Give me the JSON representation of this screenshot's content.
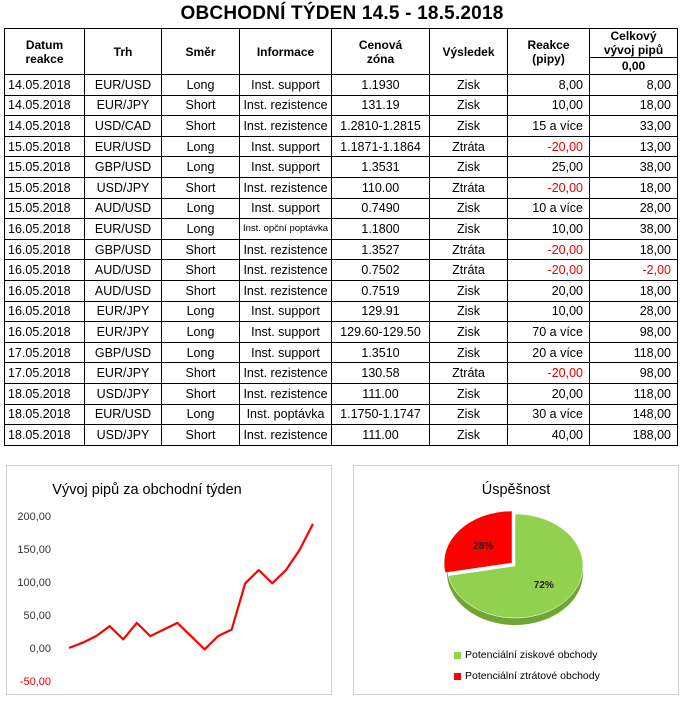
{
  "title": "OBCHODNÍ TÝDEN 14.5 - 18.5.2018",
  "table": {
    "headers": {
      "date": [
        "Datum",
        "reakce"
      ],
      "market": "Trh",
      "direction": "Směr",
      "info": "Informace",
      "zone": [
        "Cenová",
        "zóna"
      ],
      "result": "Výsledek",
      "reaction": [
        "Reakce",
        "(pipy)"
      ],
      "total": [
        "Celkový",
        "vývoj pipů"
      ],
      "start_total": "0,00"
    },
    "rows": [
      {
        "date": "14.05.2018",
        "market": "EUR/USD",
        "direction": "Long",
        "info": "Inst. support",
        "zone": "1.1930",
        "result": "Zisk",
        "reaction": "8,00",
        "total": "8,00"
      },
      {
        "date": "14.05.2018",
        "market": "EUR/JPY",
        "direction": "Short",
        "info": "Inst. rezistence",
        "zone": "131.19",
        "result": "Zisk",
        "reaction": "10,00",
        "total": "18,00"
      },
      {
        "date": "14.05.2018",
        "market": "USD/CAD",
        "direction": "Short",
        "info": "Inst. rezistence",
        "zone": "1.2810-1.2815",
        "result": "Zisk",
        "reaction": "15 a více",
        "total": "33,00"
      },
      {
        "date": "15.05.2018",
        "market": "EUR/USD",
        "direction": "Long",
        "info": "Inst. support",
        "zone": "1.1871-1.1864",
        "result": "Ztráta",
        "reaction": "-20,00",
        "total": "13,00"
      },
      {
        "date": "15.05.2018",
        "market": "GBP/USD",
        "direction": "Long",
        "info": "Inst. support",
        "zone": "1.3531",
        "result": "Zisk",
        "reaction": "25,00",
        "total": "38,00"
      },
      {
        "date": "15.05.2018",
        "market": "USD/JPY",
        "direction": "Short",
        "info": "Inst. rezistence",
        "zone": "110.00",
        "result": "Ztráta",
        "reaction": "-20,00",
        "total": "18,00"
      },
      {
        "date": "15.05.2018",
        "market": "AUD/USD",
        "direction": "Long",
        "info": "Inst. support",
        "zone": "0.7490",
        "result": "Zisk",
        "reaction": "10 a více",
        "total": "28,00"
      },
      {
        "date": "16.05.2018",
        "market": "EUR/USD",
        "direction": "Long",
        "info": "Inst. opční poptávka",
        "zone": "1.1800",
        "result": "Zisk",
        "reaction": "10,00",
        "total": "38,00"
      },
      {
        "date": "16.05.2018",
        "market": "GBP/USD",
        "direction": "Short",
        "info": "Inst. rezistence",
        "zone": "1.3527",
        "result": "Ztráta",
        "reaction": "-20,00",
        "total": "18,00"
      },
      {
        "date": "16.05.2018",
        "market": "AUD/USD",
        "direction": "Short",
        "info": "Inst. rezistence",
        "zone": "0.7502",
        "result": "Ztráta",
        "reaction": "-20,00",
        "total": "-2,00"
      },
      {
        "date": "16.05.2018",
        "market": "AUD/USD",
        "direction": "Short",
        "info": "Inst. rezistence",
        "zone": "0.7519",
        "result": "Zisk",
        "reaction": "20,00",
        "total": "18,00"
      },
      {
        "date": "16.05.2018",
        "market": "EUR/JPY",
        "direction": "Long",
        "info": "Inst. support",
        "zone": "129.91",
        "result": "Zisk",
        "reaction": "10,00",
        "total": "28,00"
      },
      {
        "date": "16.05.2018",
        "market": "EUR/JPY",
        "direction": "Long",
        "info": "Inst. support",
        "zone": "129.60-129.50",
        "result": "Zisk",
        "reaction": "70 a více",
        "total": "98,00"
      },
      {
        "date": "17.05.2018",
        "market": "GBP/USD",
        "direction": "Long",
        "info": "Inst. support",
        "zone": "1.3510",
        "result": "Zisk",
        "reaction": "20 a více",
        "total": "118,00"
      },
      {
        "date": "17.05.2018",
        "market": "EUR/JPY",
        "direction": "Short",
        "info": "Inst. rezistence",
        "zone": "130.58",
        "result": "Ztráta",
        "reaction": "-20,00",
        "total": "98,00"
      },
      {
        "date": "18.05.2018",
        "market": "USD/JPY",
        "direction": "Short",
        "info": "Inst. rezistence",
        "zone": "111.00",
        "result": "Zisk",
        "reaction": "20,00",
        "total": "118,00"
      },
      {
        "date": "18.05.2018",
        "market": "EUR/USD",
        "direction": "Long",
        "info": "Inst. poptávka",
        "zone": "1.1750-1.1747",
        "result": "Zisk",
        "reaction": "30 a více",
        "total": "148,00"
      },
      {
        "date": "18.05.2018",
        "market": "USD/JPY",
        "direction": "Short",
        "info": "Inst. rezistence",
        "zone": "111.00",
        "result": "Zisk",
        "reaction": "40,00",
        "total": "188,00"
      }
    ]
  },
  "colors": {
    "negative": "#e00000",
    "line": "#ff0000",
    "pie_win": "#92d050",
    "pie_loss": "#ff0000"
  },
  "chart_data": [
    {
      "type": "line",
      "title": "Vývoj pipů za obchodní týden",
      "x": [
        0,
        1,
        2,
        3,
        4,
        5,
        6,
        7,
        8,
        9,
        10,
        11,
        12,
        13,
        14,
        15,
        16,
        17,
        18
      ],
      "series": [
        {
          "values": [
            0,
            8,
            18,
            33,
            13,
            38,
            18,
            28,
            38,
            18,
            -2,
            18,
            28,
            98,
            118,
            98,
            118,
            148,
            188
          ]
        }
      ],
      "yticks": [
        "200,00",
        "150,00",
        "100,00",
        "50,00",
        "0,00",
        "-50,00"
      ],
      "ylim": [
        -50,
        200
      ],
      "grid": false
    },
    {
      "type": "pie",
      "title": "Úspěšnost",
      "slices": [
        {
          "label": "Potenciální ziskové obchody",
          "value": 72,
          "text": "72%"
        },
        {
          "label": "Potenciální ztrátové obchody",
          "value": 28,
          "text": "28%"
        }
      ],
      "legend": "bottom"
    }
  ]
}
